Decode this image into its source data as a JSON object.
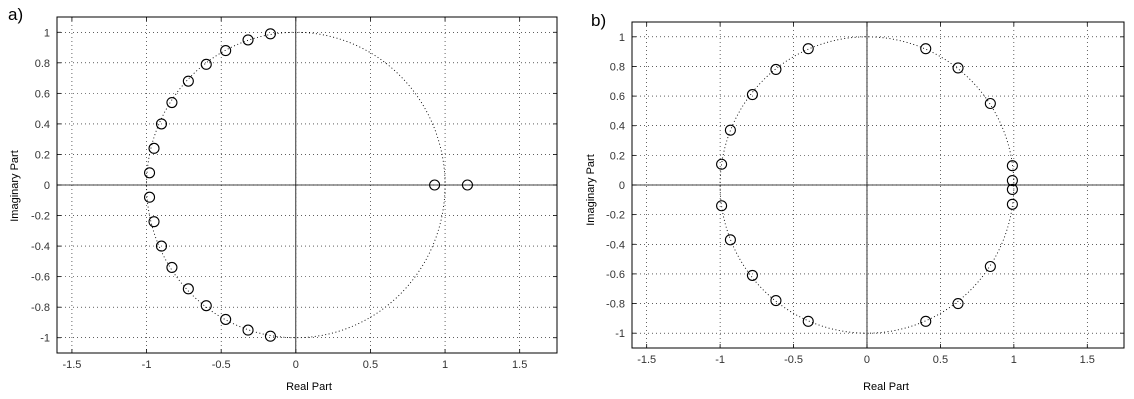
{
  "chart_data": [
    {
      "type": "scatter",
      "panel_label": "a)",
      "title": "",
      "xlabel": "Real Part",
      "ylabel": "Imaginary Part",
      "xlim": [
        -1.6,
        1.75
      ],
      "ylim": [
        -1.1,
        1.1
      ],
      "xticks": [
        -1.5,
        -1,
        -0.5,
        0,
        0.5,
        1,
        1.5
      ],
      "yticks": [
        -1,
        -0.8,
        -0.6,
        -0.4,
        -0.2,
        0,
        0.2,
        0.4,
        0.6,
        0.8,
        1
      ],
      "grid": true,
      "marker": "circle-open",
      "unit_circle": true,
      "series": [
        {
          "points": [
            [
              -0.17,
              0.99
            ],
            [
              -0.32,
              0.95
            ],
            [
              -0.47,
              0.88
            ],
            [
              -0.6,
              0.79
            ],
            [
              -0.72,
              0.68
            ],
            [
              -0.83,
              0.54
            ],
            [
              -0.9,
              0.4
            ],
            [
              -0.95,
              0.24
            ],
            [
              -0.98,
              0.08
            ],
            [
              -0.98,
              -0.08
            ],
            [
              -0.95,
              -0.24
            ],
            [
              -0.9,
              -0.4
            ],
            [
              -0.83,
              -0.54
            ],
            [
              -0.72,
              -0.68
            ],
            [
              -0.6,
              -0.79
            ],
            [
              -0.47,
              -0.88
            ],
            [
              -0.32,
              -0.95
            ],
            [
              -0.17,
              -0.99
            ],
            [
              0.93,
              0.0
            ],
            [
              1.15,
              0.0
            ]
          ]
        }
      ]
    },
    {
      "type": "scatter",
      "panel_label": "b)",
      "title": "",
      "xlabel": "Real Part",
      "ylabel": "Imaginary Part",
      "xlim": [
        -1.6,
        1.75
      ],
      "ylim": [
        -1.1,
        1.1
      ],
      "xticks": [
        -1.5,
        -1,
        -0.5,
        0,
        0.5,
        1,
        1.5
      ],
      "yticks": [
        -1,
        -0.8,
        -0.6,
        -0.4,
        -0.2,
        0,
        0.2,
        0.4,
        0.6,
        0.8,
        1
      ],
      "grid": true,
      "marker": "circle-open",
      "unit_circle": true,
      "series": [
        {
          "points": [
            [
              -0.4,
              0.92
            ],
            [
              0.4,
              0.92
            ],
            [
              -0.62,
              0.78
            ],
            [
              0.62,
              0.79
            ],
            [
              -0.78,
              0.61
            ],
            [
              0.84,
              0.55
            ],
            [
              -0.93,
              0.37
            ],
            [
              -0.99,
              0.14
            ],
            [
              0.99,
              0.13
            ],
            [
              0.99,
              0.03
            ],
            [
              0.99,
              -0.03
            ],
            [
              0.99,
              -0.13
            ],
            [
              -0.99,
              -0.14
            ],
            [
              -0.93,
              -0.37
            ],
            [
              -0.78,
              -0.61
            ],
            [
              0.84,
              -0.55
            ],
            [
              -0.62,
              -0.78
            ],
            [
              0.62,
              -0.8
            ],
            [
              -0.4,
              -0.92
            ],
            [
              0.4,
              -0.92
            ]
          ]
        }
      ]
    }
  ]
}
